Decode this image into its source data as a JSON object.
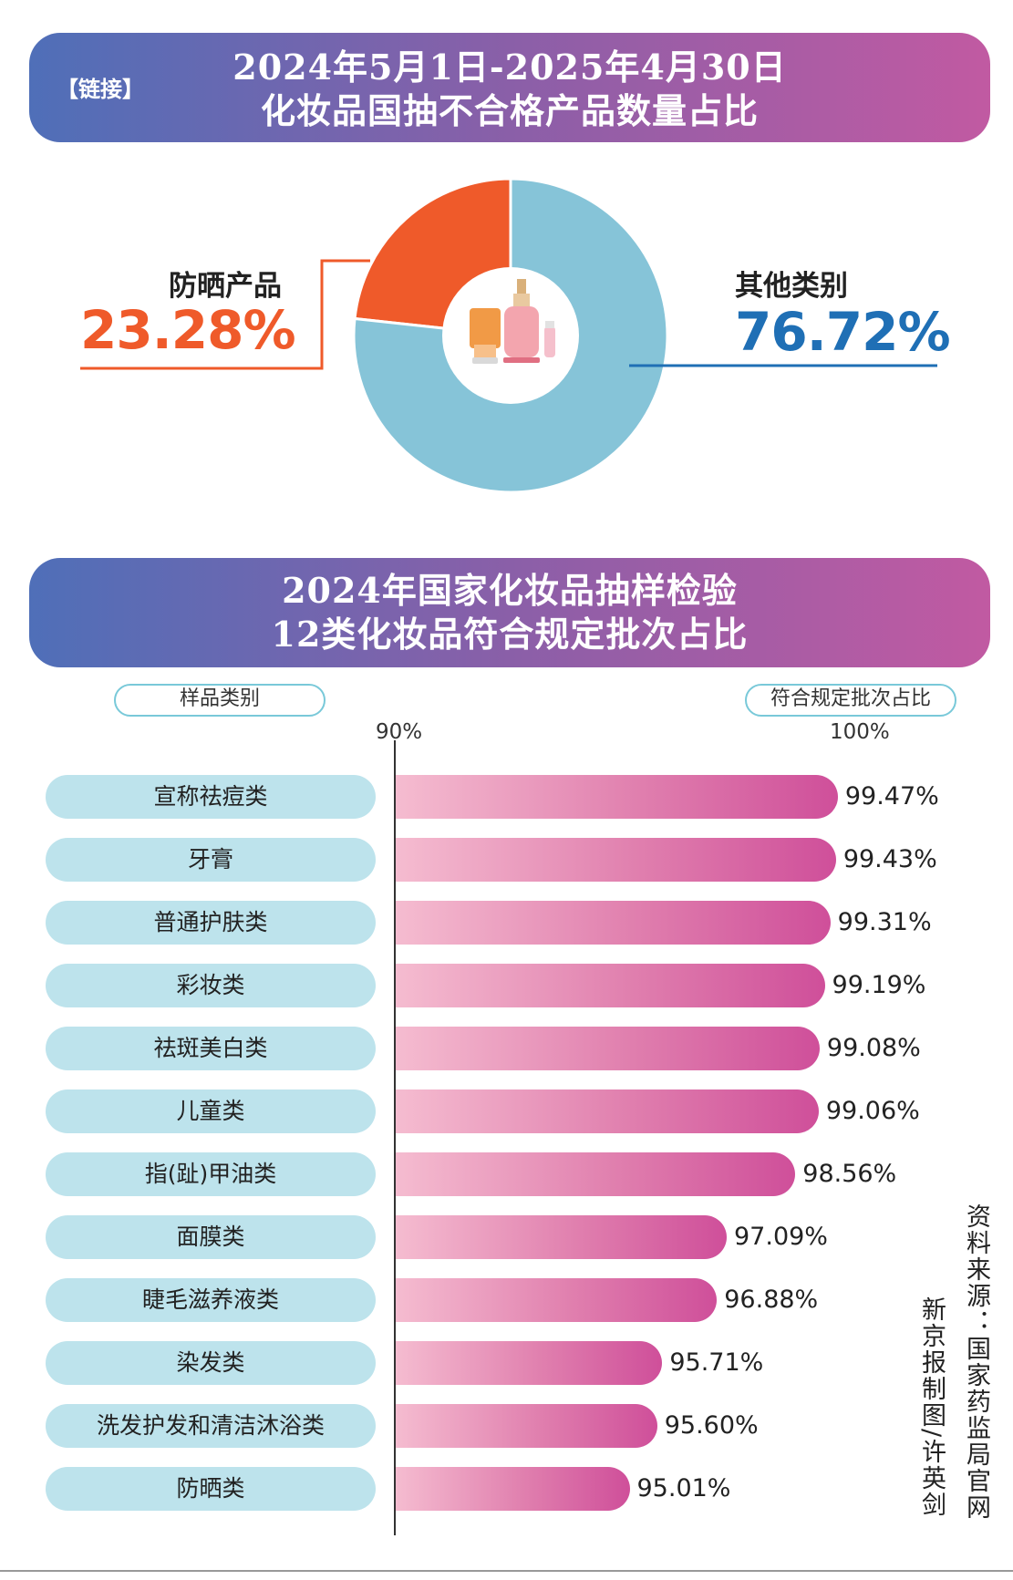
{
  "header1": {
    "tag": "【链接】",
    "line1": "2024年5月1日-2025年4月30日",
    "line2": "化妆品国抽不合格产品数量占比"
  },
  "header2": {
    "line1": "2024年国家化妆品抽样检验",
    "line2": "12类化妆品符合规定批次占比"
  },
  "colors": {
    "sunscreen": "#ef5a2a",
    "other": "#86c4d8",
    "other_text": "#1f6fb5",
    "pill_bg": "#bde3ec"
  },
  "legend": {
    "category_label": "样品类别",
    "value_label": "符合规定批次占比"
  },
  "source": {
    "data_source": "资料来源：国家药监局官网",
    "credit": "新京报制图/许英剑"
  },
  "chart_data": [
    {
      "type": "pie",
      "style": "donut",
      "title": "化妆品国抽不合格产品数量占比",
      "slices": [
        {
          "label": "防晒产品",
          "value": 23.28,
          "display": "23.28%"
        },
        {
          "label": "其他类别",
          "value": 76.72,
          "display": "76.72%"
        }
      ]
    },
    {
      "type": "bar",
      "orientation": "horizontal",
      "title": "12类化妆品符合规定批次占比",
      "xlim": [
        90,
        100
      ],
      "ticks": [
        "90%",
        "100%"
      ],
      "categories": [
        "宣称祛痘类",
        "牙膏",
        "普通护肤类",
        "彩妆类",
        "祛斑美白类",
        "儿童类",
        "指(趾)甲油类",
        "面膜类",
        "睫毛滋养液类",
        "染发类",
        "洗发护发和清洁沐浴类",
        "防晒类"
      ],
      "values": [
        99.47,
        99.43,
        99.31,
        99.19,
        99.08,
        99.06,
        98.56,
        97.09,
        96.88,
        95.71,
        95.6,
        95.01
      ],
      "labels": [
        "99.47%",
        "99.43%",
        "99.31%",
        "99.19%",
        "99.08%",
        "99.06%",
        "98.56%",
        "97.09%",
        "96.88%",
        "95.71%",
        "95.60%",
        "95.01%"
      ]
    }
  ]
}
